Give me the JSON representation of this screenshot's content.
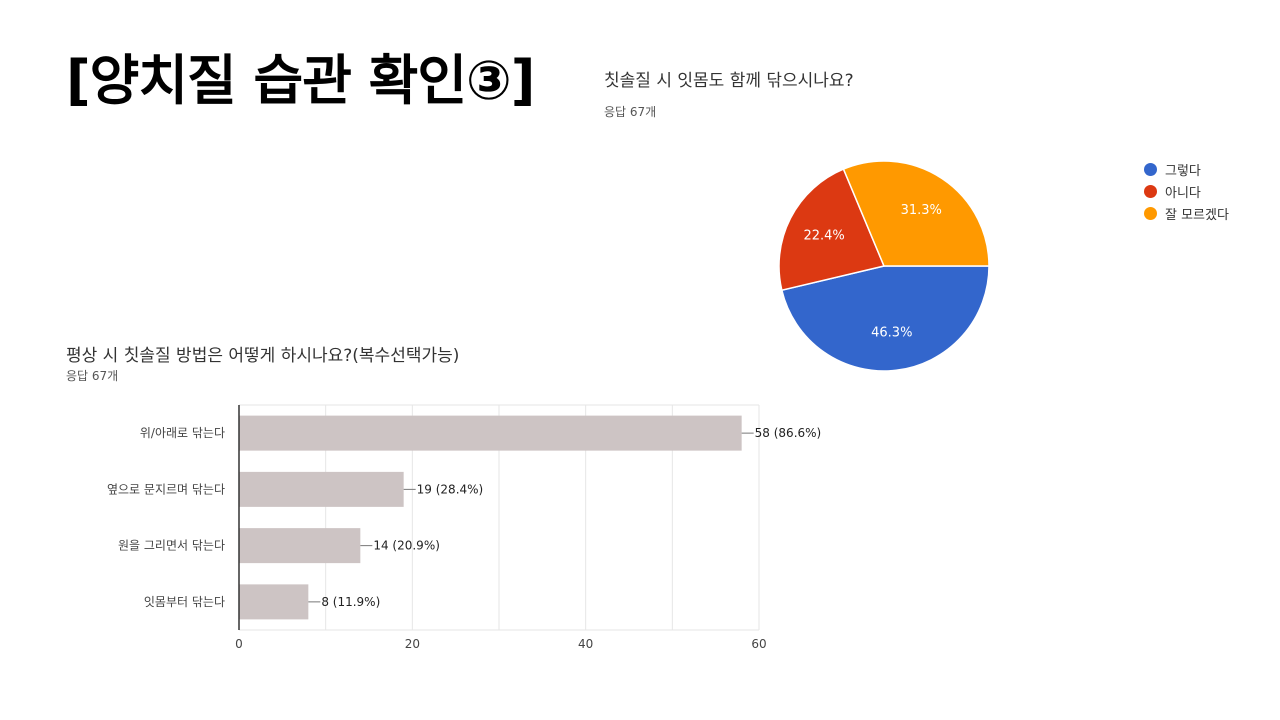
{
  "slide": {
    "title": "[양치질 습관 확인③]"
  },
  "pie_question": {
    "title": "칫솔질 시 잇몸도 함께 닦으시나요?",
    "subtitle": "응답 67개"
  },
  "bar_question": {
    "title": "평상 시 칫솔질 방법은 어떻게 하시나요?(복수선택가능)",
    "subtitle": "응답 67개"
  },
  "chart_data": [
    {
      "type": "pie",
      "title": "칫솔질 시 잇몸도 함께 닦으시나요?",
      "categories": [
        "그렇다",
        "아니다",
        "잘 모르겠다"
      ],
      "values": [
        46.3,
        22.4,
        31.3
      ],
      "labels": [
        "46.3%",
        "22.4%",
        "31.3%"
      ],
      "colors": [
        "#3366cc",
        "#dc3912",
        "#ff9900"
      ],
      "legend": "right"
    },
    {
      "type": "bar",
      "orientation": "horizontal",
      "title": "평상 시 칫솔질 방법은 어떻게 하시나요?(복수선택가능)",
      "categories": [
        "위/아래로 닦는다",
        "옆으로 문지르며 닦는다",
        "원을 그리면서 닦는다",
        "잇몸부터 닦는다"
      ],
      "values": [
        58,
        19,
        14,
        8
      ],
      "labels": [
        "58 (86.6%)",
        "19 (28.4%)",
        "14 (20.9%)",
        "8 (11.9%)"
      ],
      "xlim": [
        0,
        60
      ],
      "ticks": [
        "0",
        "20",
        "40",
        "60"
      ],
      "bar_color": "#cdc4c4",
      "grid": true
    }
  ]
}
